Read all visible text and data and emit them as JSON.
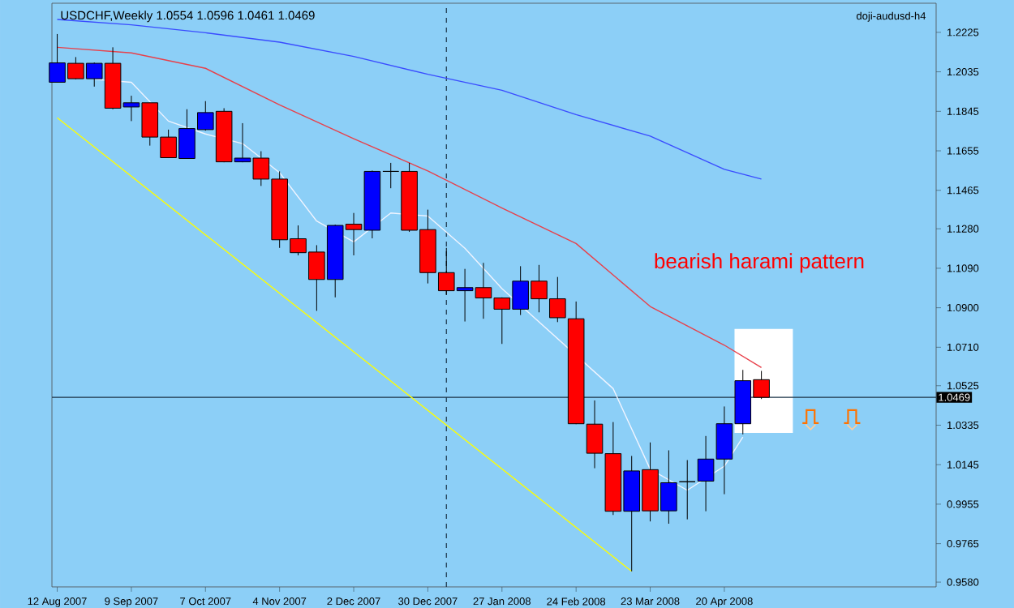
{
  "chart_data": {
    "type": "candlestick",
    "title": "USDCHF,Weekly  1.0554 1.0596 1.0461 1.0469",
    "annotations": [
      "bearish harami  pattern",
      "doji-audusd-h4"
    ],
    "x": [
      "2007-08-12",
      "2007-08-19",
      "2007-08-26",
      "2007-09-02",
      "2007-09-09",
      "2007-09-16",
      "2007-09-23",
      "2007-09-30",
      "2007-10-07",
      "2007-10-14",
      "2007-10-21",
      "2007-10-28",
      "2007-11-04",
      "2007-11-11",
      "2007-11-18",
      "2007-11-25",
      "2007-12-02",
      "2007-12-09",
      "2007-12-16",
      "2007-12-23",
      "2007-12-30",
      "2008-01-06",
      "2008-01-13",
      "2008-01-20",
      "2008-01-27",
      "2008-02-03",
      "2008-02-10",
      "2008-02-17",
      "2008-02-24",
      "2008-03-02",
      "2008-03-09",
      "2008-03-16",
      "2008-03-23",
      "2008-03-30",
      "2008-04-06",
      "2008-04-13",
      "2008-04-20",
      "2008-04-27",
      "2008-05-04"
    ],
    "ohlc": [
      [
        1.1985,
        1.2217,
        1.1985,
        1.2078
      ],
      [
        1.2076,
        1.2106,
        1.1999,
        1.2002
      ],
      [
        1.2002,
        1.208,
        1.1964,
        1.2076
      ],
      [
        1.2076,
        1.2153,
        1.1855,
        1.186
      ],
      [
        1.1866,
        1.192,
        1.1798,
        1.1886
      ],
      [
        1.1886,
        1.1886,
        1.168,
        1.1721
      ],
      [
        1.1721,
        1.1757,
        1.162,
        1.1622
      ],
      [
        1.1618,
        1.1855,
        1.1618,
        1.1762
      ],
      [
        1.1757,
        1.1894,
        1.1752,
        1.1839
      ],
      [
        1.1845,
        1.186,
        1.16,
        1.1602
      ],
      [
        1.1602,
        1.1788,
        1.16,
        1.162
      ],
      [
        1.162,
        1.1653,
        1.1486,
        1.1519
      ],
      [
        1.1519,
        1.1556,
        1.1188,
        1.1227
      ],
      [
        1.1232,
        1.1296,
        1.1152,
        1.1165
      ],
      [
        1.1168,
        1.1201,
        1.0885,
        1.1036
      ],
      [
        1.1036,
        1.13,
        1.095,
        1.1296
      ],
      [
        1.1302,
        1.1356,
        1.1152,
        1.1276
      ],
      [
        1.1273,
        1.156,
        1.1234,
        1.1556
      ],
      [
        1.1556,
        1.1597,
        1.1475,
        1.1556
      ],
      [
        1.1556,
        1.1597,
        1.1265,
        1.1273
      ],
      [
        1.1276,
        1.1372,
        1.1017,
        1.1069
      ],
      [
        1.1069,
        1.1188,
        1.0963,
        1.0982
      ],
      [
        1.0982,
        1.1087,
        1.0834,
        1.0997
      ],
      [
        1.0997,
        1.1116,
        1.0847,
        1.0947
      ],
      [
        1.0947,
        1.095,
        1.0726,
        1.0893
      ],
      [
        1.0893,
        1.11,
        1.0865,
        1.1028
      ],
      [
        1.1028,
        1.1106,
        1.0878,
        1.0943
      ],
      [
        1.0943,
        1.1048,
        1.0831,
        1.0852
      ],
      [
        1.0847,
        1.093,
        1.034,
        1.0342
      ],
      [
        1.034,
        1.0454,
        1.0128,
        1.02
      ],
      [
        1.0198,
        1.035,
        0.9903,
        0.9921
      ],
      [
        0.9921,
        1.0187,
        0.9632,
        1.0115
      ],
      [
        1.0121,
        1.0252,
        0.9872,
        0.9923
      ],
      [
        0.9923,
        1.0214,
        0.9861,
        1.0058
      ],
      [
        1.0063,
        1.0167,
        0.9882,
        1.0063
      ],
      [
        1.0066,
        1.0283,
        0.9921,
        1.0172
      ],
      [
        1.0172,
        1.0425,
        1.0003,
        1.0342
      ],
      [
        1.0342,
        1.0601,
        1.0291,
        1.0549
      ],
      [
        1.0554,
        1.0596,
        1.0461,
        1.0469
      ]
    ],
    "colors": [
      "#0000ff",
      "#ff0000",
      "#0000ff",
      "#ff0000",
      "#0000ff",
      "#ff0000",
      "#ff0000",
      "#0000ff",
      "#0000ff",
      "#ff0000",
      "#0000ff",
      "#ff0000",
      "#ff0000",
      "#ff0000",
      "#ff0000",
      "#0000ff",
      "#ff0000",
      "#0000ff",
      "#000000",
      "#ff0000",
      "#ff0000",
      "#ff0000",
      "#0000ff",
      "#ff0000",
      "#ff0000",
      "#0000ff",
      "#ff0000",
      "#ff0000",
      "#ff0000",
      "#ff0000",
      "#ff0000",
      "#0000ff",
      "#ff0000",
      "#0000ff",
      "#000000",
      "#0000ff",
      "#0000ff",
      "#0000ff",
      "#ff0000"
    ],
    "series": [
      {
        "type": "line",
        "color": "#3a4cff",
        "x": [
          "2007-08-12",
          "2007-09-09",
          "2007-10-07",
          "2007-11-04",
          "2007-12-02",
          "2007-12-30",
          "2008-01-27",
          "2008-02-24",
          "2008-03-23",
          "2008-04-20",
          "2008-05-04"
        ],
        "values": [
          1.2287,
          1.2261,
          1.2223,
          1.2178,
          1.2109,
          1.2023,
          1.1946,
          1.1829,
          1.1726,
          1.1566,
          1.1519
        ]
      },
      {
        "type": "line",
        "color": "#e8404a",
        "x": [
          "2007-08-12",
          "2007-09-09",
          "2007-10-07",
          "2007-11-04",
          "2007-12-02",
          "2007-12-30",
          "2008-01-27",
          "2008-02-24",
          "2008-03-23",
          "2008-04-20",
          "2008-05-04"
        ],
        "values": [
          1.2153,
          1.2126,
          1.2052,
          1.1876,
          1.1713,
          1.1558,
          1.138,
          1.1209,
          1.0906,
          1.072,
          1.0612
        ]
      },
      {
        "type": "line",
        "color": "#f0f4ff",
        "x": [
          "2007-08-26",
          "2007-09-09",
          "2007-09-23",
          "2007-10-07",
          "2007-10-21",
          "2007-11-04",
          "2007-11-18",
          "2007-12-02",
          "2007-12-16",
          "2007-12-30",
          "2008-01-13",
          "2008-01-27",
          "2008-02-10",
          "2008-03-09",
          "2008-03-23",
          "2008-04-06",
          "2008-04-20",
          "2008-04-27"
        ],
        "values": [
          1.1999,
          1.1985,
          1.1798,
          1.1736,
          1.169,
          1.155,
          1.1317,
          1.1217,
          1.1356,
          1.1341,
          1.1186,
          1.0992,
          null,
          1.0511,
          1.0123,
          1.0022,
          1.0138,
          1.0278
        ]
      },
      {
        "type": "line",
        "color": "#ffff00",
        "x": [
          "2007-08-12",
          "2008-03-16"
        ],
        "values": [
          1.1814,
          0.9632
        ]
      }
    ],
    "xlim": [
      "2007-08-10",
      "2008-07-09"
    ],
    "xticks": [
      {
        "value": "2007-08-12",
        "label": "12 Aug 2007"
      },
      {
        "value": "2007-09-09",
        "label": "9 Sep 2007"
      },
      {
        "value": "2007-10-07",
        "label": "7 Oct 2007"
      },
      {
        "value": "2007-11-04",
        "label": "4 Nov 2007"
      },
      {
        "value": "2007-12-02",
        "label": "2 Dec 2007"
      },
      {
        "value": "2007-12-30",
        "label": "30 Dec 2007"
      },
      {
        "value": "2008-01-27",
        "label": "27 Jan 2008"
      },
      {
        "value": "2008-02-24",
        "label": "24 Feb 2008"
      },
      {
        "value": "2008-03-23",
        "label": "23 Mar 2008"
      },
      {
        "value": "2008-04-20",
        "label": "20 Apr 2008"
      }
    ],
    "ylim": [
      0.9557,
      1.2365
    ],
    "yticks": [
      1.2225,
      1.2035,
      1.1845,
      1.1655,
      1.1465,
      {
        "value": 1.128,
        "label": "1.1280"
      },
      {
        "value": 1.109,
        "label": "1.1090"
      },
      {
        "value": 1.09,
        "label": "1.0900"
      },
      {
        "value": 1.071,
        "label": "1.0710"
      },
      1.0525,
      1.0335,
      1.0145,
      0.9955,
      0.9765,
      {
        "value": 0.958,
        "label": "0.9580"
      }
    ],
    "ref_lines": [
      {
        "axis": "y",
        "value": 1.0469,
        "label": "1.0469",
        "color": "#1c3448"
      },
      {
        "axis": "x",
        "value": "2008-01-06",
        "color": "#1c3448",
        "line_style": "dashed"
      }
    ]
  }
}
